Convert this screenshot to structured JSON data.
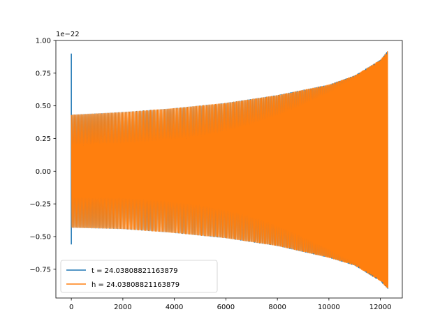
{
  "chart_data": {
    "type": "line",
    "title": "",
    "xlabel": "",
    "ylabel": "",
    "y_offset_label": "1e−22",
    "xlim": [
      -600,
      12850
    ],
    "ylim": [
      -0.97,
      1.0
    ],
    "x_ticks": [
      {
        "value": 0,
        "label": "0"
      },
      {
        "value": 2000,
        "label": "2000"
      },
      {
        "value": 4000,
        "label": "4000"
      },
      {
        "value": 6000,
        "label": "6000"
      },
      {
        "value": 8000,
        "label": "8000"
      },
      {
        "value": 10000,
        "label": "10000"
      },
      {
        "value": 12000,
        "label": "12000"
      }
    ],
    "y_ticks": [
      {
        "value": -0.75,
        "label": "−0.75"
      },
      {
        "value": -0.5,
        "label": "−0.50"
      },
      {
        "value": -0.25,
        "label": "−0.25"
      },
      {
        "value": 0.0,
        "label": "0.00"
      },
      {
        "value": 0.25,
        "label": "0.25"
      },
      {
        "value": 0.5,
        "label": "0.50"
      },
      {
        "value": 0.75,
        "label": "0.75"
      },
      {
        "value": 1.0,
        "label": "1.00"
      }
    ],
    "grid": false,
    "legend_position": "lower left",
    "series": [
      {
        "name": "t = 24.03808821163879",
        "color": "#1f77b4",
        "x_range": [
          0,
          12290
        ],
        "initial_spike": {
          "x": 0,
          "max": 0.9,
          "min": -0.56
        },
        "envelope": [
          {
            "x": 0,
            "upper": 0.43,
            "lower": -0.43
          },
          {
            "x": 2000,
            "upper": 0.45,
            "lower": -0.44
          },
          {
            "x": 4000,
            "upper": 0.48,
            "lower": -0.47
          },
          {
            "x": 6000,
            "upper": 0.52,
            "lower": -0.51
          },
          {
            "x": 8000,
            "upper": 0.58,
            "lower": -0.57
          },
          {
            "x": 10000,
            "upper": 0.66,
            "lower": -0.66
          },
          {
            "x": 11000,
            "upper": 0.73,
            "lower": -0.72
          },
          {
            "x": 12000,
            "upper": 0.85,
            "lower": -0.84
          },
          {
            "x": 12290,
            "upper": 0.92,
            "lower": -0.9
          }
        ]
      },
      {
        "name": "h = 24.03808821163879",
        "color": "#ff7f0e",
        "x_range": [
          0,
          12290
        ],
        "envelope": [
          {
            "x": 0,
            "upper": 0.43,
            "lower": -0.43
          },
          {
            "x": 2000,
            "upper": 0.45,
            "lower": -0.44
          },
          {
            "x": 4000,
            "upper": 0.48,
            "lower": -0.47
          },
          {
            "x": 6000,
            "upper": 0.52,
            "lower": -0.51
          },
          {
            "x": 8000,
            "upper": 0.58,
            "lower": -0.57
          },
          {
            "x": 10000,
            "upper": 0.66,
            "lower": -0.66
          },
          {
            "x": 11000,
            "upper": 0.73,
            "lower": -0.72
          },
          {
            "x": 12000,
            "upper": 0.85,
            "lower": -0.84
          },
          {
            "x": 12290,
            "upper": 0.92,
            "lower": -0.9
          }
        ]
      }
    ]
  }
}
